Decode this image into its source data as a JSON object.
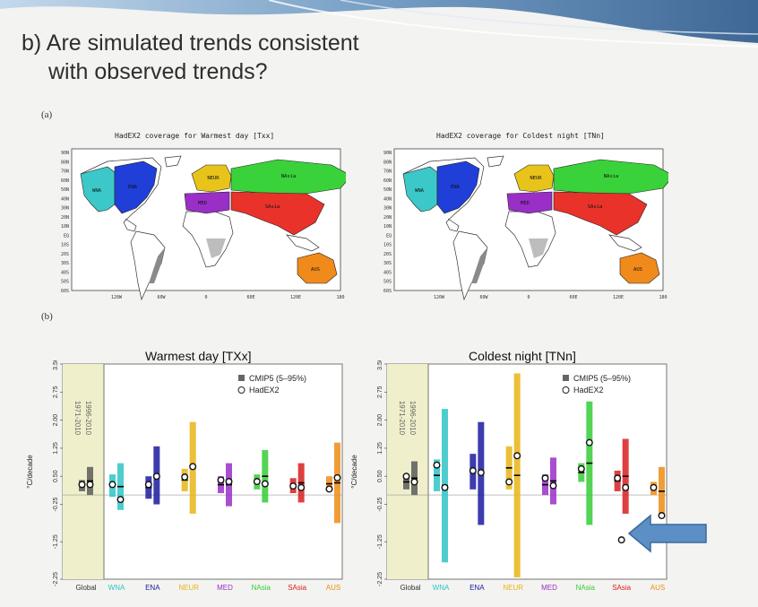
{
  "slide": {
    "title_line1": "b) Are simulated trends consistent",
    "title_line2": "with observed trends?",
    "panel_a_label": "(a)",
    "panel_b_label": "(b)"
  },
  "maps": [
    {
      "title": "HadEX2 coverage for Warmest day [Txx]",
      "lat_labels": [
        "90N",
        "80N",
        "70N",
        "60N",
        "50N",
        "40N",
        "30N",
        "20N",
        "10N",
        "EQ",
        "10S",
        "20S",
        "30S",
        "40S",
        "50S",
        "60S"
      ],
      "lon_labels": [
        "120W",
        "60W",
        "0",
        "60E",
        "120E",
        "180"
      ],
      "regions": [
        {
          "name": "WNA",
          "color": "#3cc8c8"
        },
        {
          "name": "ENA",
          "color": "#1f3fd8"
        },
        {
          "name": "NEUR",
          "color": "#e8c41a"
        },
        {
          "name": "MED",
          "color": "#9a2fc8"
        },
        {
          "name": "NAsia",
          "color": "#3ad23a"
        },
        {
          "name": "SAsia",
          "color": "#e8322a"
        },
        {
          "name": "AUS",
          "color": "#f08a1a"
        }
      ]
    },
    {
      "title": "HadEX2 coverage for Coldest night [TNn]",
      "lat_labels": [
        "90N",
        "80N",
        "70N",
        "60N",
        "50N",
        "40N",
        "30N",
        "20N",
        "10N",
        "EQ",
        "10S",
        "20S",
        "30S",
        "40S",
        "50S",
        "60S"
      ],
      "lon_labels": [
        "120W",
        "60W",
        "0",
        "60E",
        "120E",
        "180"
      ],
      "regions": [
        {
          "name": "WNA",
          "color": "#3cc8c8"
        },
        {
          "name": "ENA",
          "color": "#1f3fd8"
        },
        {
          "name": "NEUR",
          "color": "#e8c41a"
        },
        {
          "name": "MED",
          "color": "#9a2fc8"
        },
        {
          "name": "NAsia",
          "color": "#3ad23a"
        },
        {
          "name": "SAsia",
          "color": "#e8322a"
        },
        {
          "name": "AUS",
          "color": "#f08a1a"
        }
      ]
    }
  ],
  "chart_data": [
    {
      "type": "bar",
      "title": "Warmest day [TXx]",
      "ylabel": "°C/decade",
      "ylim": [
        -2.25,
        3.5
      ],
      "yticks": [
        -2.25,
        -1.25,
        -0.25,
        0.5,
        1.25,
        2.0,
        2.75,
        3.5
      ],
      "ytick_labels": [
        "-2.25",
        "-1.25",
        "-0.25",
        "0.50",
        "1.25",
        "2.00",
        "2.75",
        "3.50"
      ],
      "period_labels": [
        "1971-2010",
        "1996-2010"
      ],
      "legend": {
        "position": "top-right",
        "entries": [
          "CMIP5 (5–95%)",
          "HadEX2"
        ]
      },
      "categories": [
        "Global",
        "WNA",
        "ENA",
        "NEUR",
        "MED",
        "NAsia",
        "SAsia",
        "AUS"
      ],
      "colors": [
        "#5a5a5a",
        "#2ec4c4",
        "#1a1aa0",
        "#e8b414",
        "#9a2fc8",
        "#36cc36",
        "#d81e1e",
        "#ee8c14"
      ],
      "range_1971_2010": [
        [
          0.1,
          0.4
        ],
        [
          -0.05,
          0.55
        ],
        [
          -0.1,
          0.5
        ],
        [
          0.1,
          0.7
        ],
        [
          0.05,
          0.5
        ],
        [
          0.15,
          0.55
        ],
        [
          0.05,
          0.45
        ],
        [
          0.1,
          0.5
        ]
      ],
      "range_1996_2010": [
        [
          0.0,
          0.75
        ],
        [
          -0.4,
          0.85
        ],
        [
          -0.25,
          1.3
        ],
        [
          -0.5,
          1.95
        ],
        [
          -0.3,
          0.85
        ],
        [
          -0.2,
          1.2
        ],
        [
          -0.2,
          0.85
        ],
        [
          -0.75,
          1.4
        ]
      ],
      "obs_1971_2010": [
        0.28,
        0.28,
        0.28,
        0.48,
        0.4,
        0.36,
        0.24,
        0.16
      ],
      "obs_1996_2010": [
        0.28,
        -0.12,
        0.5,
        0.76,
        0.36,
        0.3,
        0.2,
        0.46
      ]
    },
    {
      "type": "bar",
      "title": "Coldest night [TNn]",
      "ylabel": "°C/decade",
      "ylim": [
        -2.25,
        3.5
      ],
      "yticks": [
        -2.25,
        -1.25,
        -0.25,
        0.5,
        1.25,
        2.0,
        2.75,
        3.5
      ],
      "ytick_labels": [
        "-2.25",
        "-1.25",
        "-0.25",
        "0.50",
        "1.25",
        "2.00",
        "2.75",
        "3.50"
      ],
      "period_labels": [
        "1971-2010",
        "1996-2010"
      ],
      "legend": {
        "position": "top-right",
        "entries": [
          "CMIP5 (5–95%)",
          "HadEX2"
        ]
      },
      "categories": [
        "Global",
        "WNA",
        "ENA",
        "NEUR",
        "MED",
        "NAsia",
        "SAsia",
        "AUS"
      ],
      "colors": [
        "#5a5a5a",
        "#2ec4c4",
        "#1a1aa0",
        "#e8b414",
        "#9a2fc8",
        "#36cc36",
        "#d81e1e",
        "#ee8c14"
      ],
      "range_1971_2010": [
        [
          0.15,
          0.55
        ],
        [
          0.1,
          0.95
        ],
        [
          0.15,
          1.1
        ],
        [
          0.15,
          1.3
        ],
        [
          0.0,
          0.55
        ],
        [
          0.35,
          0.85
        ],
        [
          0.1,
          0.65
        ],
        [
          0.0,
          0.35
        ]
      ],
      "range_1996_2010": [
        [
          0.0,
          0.9
        ],
        [
          -1.8,
          2.3
        ],
        [
          -0.8,
          1.95
        ],
        [
          -2.2,
          3.25
        ],
        [
          -0.25,
          1.0
        ],
        [
          -0.8,
          2.5
        ],
        [
          -0.5,
          1.5
        ],
        [
          -0.55,
          0.75
        ]
      ],
      "obs_1971_2010": [
        0.5,
        0.8,
        0.65,
        0.35,
        0.45,
        0.7,
        0.45,
        0.2
      ],
      "obs_1996_2010": [
        0.35,
        0.2,
        0.6,
        1.05,
        0.25,
        1.4,
        0.2,
        -0.55
      ],
      "highlight_point": {
        "category": "SAsia",
        "value": -1.2
      }
    }
  ]
}
